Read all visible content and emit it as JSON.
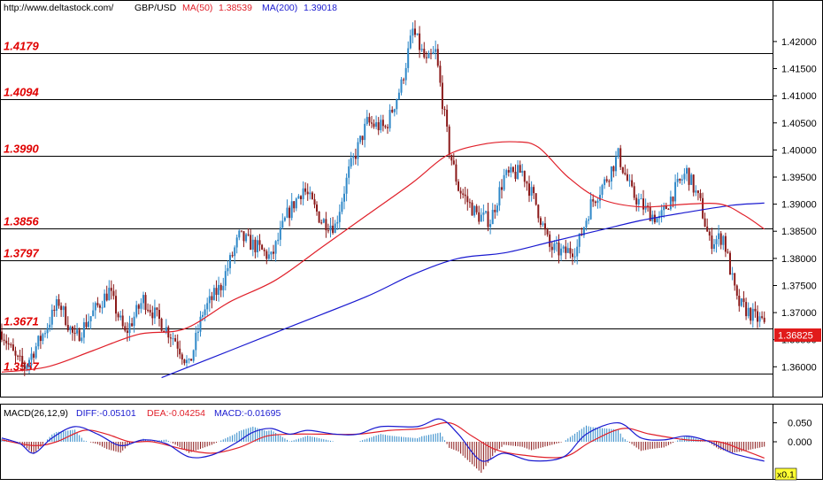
{
  "header": {
    "url": "http://www.deltastock.com/",
    "symbol": "GBP/USD",
    "ma50_label": "MA(50)",
    "ma50_value": "1.38539",
    "ma200_label": "MA(200)",
    "ma200_value": "1.39018"
  },
  "macd_header": {
    "title": "MACD(26,12,9)",
    "diff": "DIFF:-0.05101",
    "dea": "DEA:-0.04254",
    "macd": "MACD:-0.01695"
  },
  "zoom_badge": "x0.1",
  "colors": {
    "bull": "#2f88c8",
    "bear": "#8b1a1a",
    "ma50": "#e0202a",
    "ma200": "#1a1ad0",
    "level_text": "#e00000",
    "price_badge": "#e11b1b"
  },
  "chart_data": [
    {
      "type": "candlestick",
      "title": "GBP/USD",
      "y_ticks": [
        "1.42000",
        "1.41500",
        "1.41000",
        "1.40500",
        "1.40000",
        "1.39500",
        "1.39000",
        "1.38500",
        "1.38000",
        "1.37500",
        "1.37000",
        "1.36500",
        "1.36000"
      ],
      "ylim": [
        1.3545,
        1.4275
      ],
      "last_price": "1.36825",
      "levels": [
        {
          "label": "1.4179",
          "value": 1.4179
        },
        {
          "label": "1.4094",
          "value": 1.4094
        },
        {
          "label": "1.3990",
          "value": 1.399
        },
        {
          "label": "1.3856",
          "value": 1.3856
        },
        {
          "label": "1.3797",
          "value": 1.3797
        },
        {
          "label": "1.3671",
          "value": 1.3671
        },
        {
          "label": "1.3587",
          "value": 1.3587
        }
      ],
      "anchors": [
        [
          0,
          1.3665
        ],
        [
          6,
          1.3615
        ],
        [
          10,
          1.36
        ],
        [
          18,
          1.366
        ],
        [
          25,
          1.372
        ],
        [
          32,
          1.365
        ],
        [
          40,
          1.37
        ],
        [
          47,
          1.374
        ],
        [
          54,
          1.366
        ],
        [
          62,
          1.3725
        ],
        [
          70,
          1.368
        ],
        [
          76,
          1.365
        ],
        [
          82,
          1.36
        ],
        [
          88,
          1.37
        ],
        [
          96,
          1.375
        ],
        [
          104,
          1.384
        ],
        [
          112,
          1.382
        ],
        [
          118,
          1.38
        ],
        [
          125,
          1.388
        ],
        [
          132,
          1.393
        ],
        [
          140,
          1.387
        ],
        [
          146,
          1.386
        ],
        [
          152,
          1.396
        ],
        [
          160,
          1.405
        ],
        [
          168,
          1.404
        ],
        [
          175,
          1.412
        ],
        [
          180,
          1.422
        ],
        [
          186,
          1.416
        ],
        [
          190,
          1.418
        ],
        [
          196,
          1.4
        ],
        [
          200,
          1.393
        ],
        [
          208,
          1.388
        ],
        [
          214,
          1.387
        ],
        [
          220,
          1.395
        ],
        [
          228,
          1.396
        ],
        [
          234,
          1.39
        ],
        [
          240,
          1.382
        ],
        [
          246,
          1.381
        ],
        [
          252,
          1.382
        ],
        [
          258,
          1.39
        ],
        [
          264,
          1.394
        ],
        [
          270,
          1.399
        ],
        [
          276,
          1.392
        ],
        [
          282,
          1.389
        ],
        [
          288,
          1.387
        ],
        [
          294,
          1.392
        ],
        [
          300,
          1.396
        ],
        [
          306,
          1.39
        ],
        [
          310,
          1.383
        ],
        [
          316,
          1.384
        ],
        [
          322,
          1.372
        ],
        [
          330,
          1.369
        ],
        [
          334,
          1.36825
        ]
      ],
      "ma50": [
        [
          0,
          1.359
        ],
        [
          20,
          1.36
        ],
        [
          40,
          1.363
        ],
        [
          60,
          1.366
        ],
        [
          80,
          1.367
        ],
        [
          100,
          1.372
        ],
        [
          120,
          1.376
        ],
        [
          140,
          1.382
        ],
        [
          160,
          1.388
        ],
        [
          180,
          1.394
        ],
        [
          195,
          1.399
        ],
        [
          210,
          1.401
        ],
        [
          225,
          1.4015
        ],
        [
          235,
          1.4005
        ],
        [
          248,
          1.395
        ],
        [
          262,
          1.391
        ],
        [
          280,
          1.3895
        ],
        [
          300,
          1.39
        ],
        [
          315,
          1.39
        ],
        [
          325,
          1.388
        ],
        [
          334,
          1.3854
        ]
      ],
      "ma200": [
        [
          70,
          1.358
        ],
        [
          100,
          1.363
        ],
        [
          130,
          1.368
        ],
        [
          160,
          1.373
        ],
        [
          180,
          1.377
        ],
        [
          200,
          1.38
        ],
        [
          220,
          1.381
        ],
        [
          240,
          1.383
        ],
        [
          260,
          1.385
        ],
        [
          280,
          1.387
        ],
        [
          300,
          1.3885
        ],
        [
          320,
          1.3898
        ],
        [
          334,
          1.3902
        ]
      ]
    },
    {
      "type": "macd",
      "title": "MACD(26,12,9)",
      "y_ticks": [
        "0.050",
        "0.000"
      ],
      "ylim": [
        -0.098,
        0.098
      ],
      "diff": [
        [
          0,
          0.01
        ],
        [
          8,
          -0.005
        ],
        [
          14,
          -0.03
        ],
        [
          22,
          0.01
        ],
        [
          32,
          0.04
        ],
        [
          42,
          0.02
        ],
        [
          52,
          -0.01
        ],
        [
          62,
          0.005
        ],
        [
          72,
          -0.005
        ],
        [
          82,
          -0.04
        ],
        [
          92,
          -0.035
        ],
        [
          102,
          -0.005
        ],
        [
          110,
          0.025
        ],
        [
          118,
          0.035
        ],
        [
          126,
          0.02
        ],
        [
          134,
          0.03
        ],
        [
          146,
          0.02
        ],
        [
          156,
          0.02
        ],
        [
          166,
          0.04
        ],
        [
          182,
          0.04
        ],
        [
          192,
          0.06
        ],
        [
          200,
          0.02
        ],
        [
          210,
          -0.05
        ],
        [
          220,
          -0.03
        ],
        [
          232,
          -0.05
        ],
        [
          246,
          -0.04
        ],
        [
          256,
          0.02
        ],
        [
          270,
          0.05
        ],
        [
          280,
          0.01
        ],
        [
          290,
          0.005
        ],
        [
          300,
          0.015
        ],
        [
          310,
          0.0
        ],
        [
          320,
          -0.03
        ],
        [
          334,
          -0.051
        ]
      ],
      "dea": [
        [
          0,
          0.005
        ],
        [
          14,
          -0.01
        ],
        [
          24,
          0.0
        ],
        [
          36,
          0.03
        ],
        [
          46,
          0.02
        ],
        [
          56,
          0.0
        ],
        [
          66,
          0.0
        ],
        [
          80,
          -0.02
        ],
        [
          92,
          -0.03
        ],
        [
          104,
          -0.015
        ],
        [
          116,
          0.015
        ],
        [
          128,
          0.02
        ],
        [
          140,
          0.02
        ],
        [
          156,
          0.02
        ],
        [
          170,
          0.03
        ],
        [
          184,
          0.035
        ],
        [
          196,
          0.05
        ],
        [
          206,
          0.015
        ],
        [
          216,
          -0.02
        ],
        [
          228,
          -0.035
        ],
        [
          246,
          -0.04
        ],
        [
          258,
          0.0
        ],
        [
          272,
          0.035
        ],
        [
          284,
          0.02
        ],
        [
          300,
          0.005
        ],
        [
          314,
          0.0
        ],
        [
          324,
          -0.02
        ],
        [
          334,
          -0.043
        ]
      ]
    }
  ]
}
